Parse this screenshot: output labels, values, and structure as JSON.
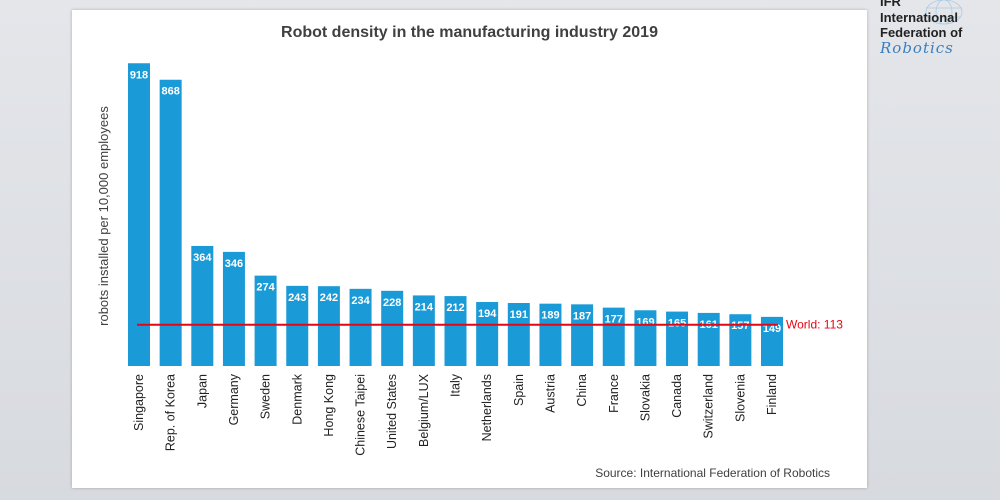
{
  "chart_data": {
    "type": "bar",
    "title": "Robot density in the manufacturing industry 2019",
    "ylabel": "robots installed per 10,000 employees",
    "xlabel": "",
    "categories": [
      "Singapore",
      "Rep. of Korea",
      "Japan",
      "Germany",
      "Sweden",
      "Denmark",
      "Hong Kong",
      "Chinese Taipei",
      "United States",
      "Belgium/LUX",
      "Italy",
      "Netherlands",
      "Spain",
      "Austria",
      "China",
      "France",
      "Slovakia",
      "Canada",
      "Switzerland",
      "Slovenia",
      "Finland"
    ],
    "values": [
      918,
      868,
      364,
      346,
      274,
      243,
      242,
      234,
      228,
      214,
      212,
      194,
      191,
      189,
      187,
      177,
      169,
      165,
      161,
      157,
      149
    ],
    "ylim": [
      0,
      940
    ],
    "bar_color": "#1a9bd7",
    "reference_line": {
      "label": "World: 113",
      "value": 113,
      "color": "#e30613"
    },
    "grid": false,
    "legend": "none"
  },
  "source": "Source: International  Federation of Robotics",
  "logo": {
    "line1": "IFR",
    "line2": "International",
    "line3": "Federation of",
    "line4": "Robotics"
  }
}
